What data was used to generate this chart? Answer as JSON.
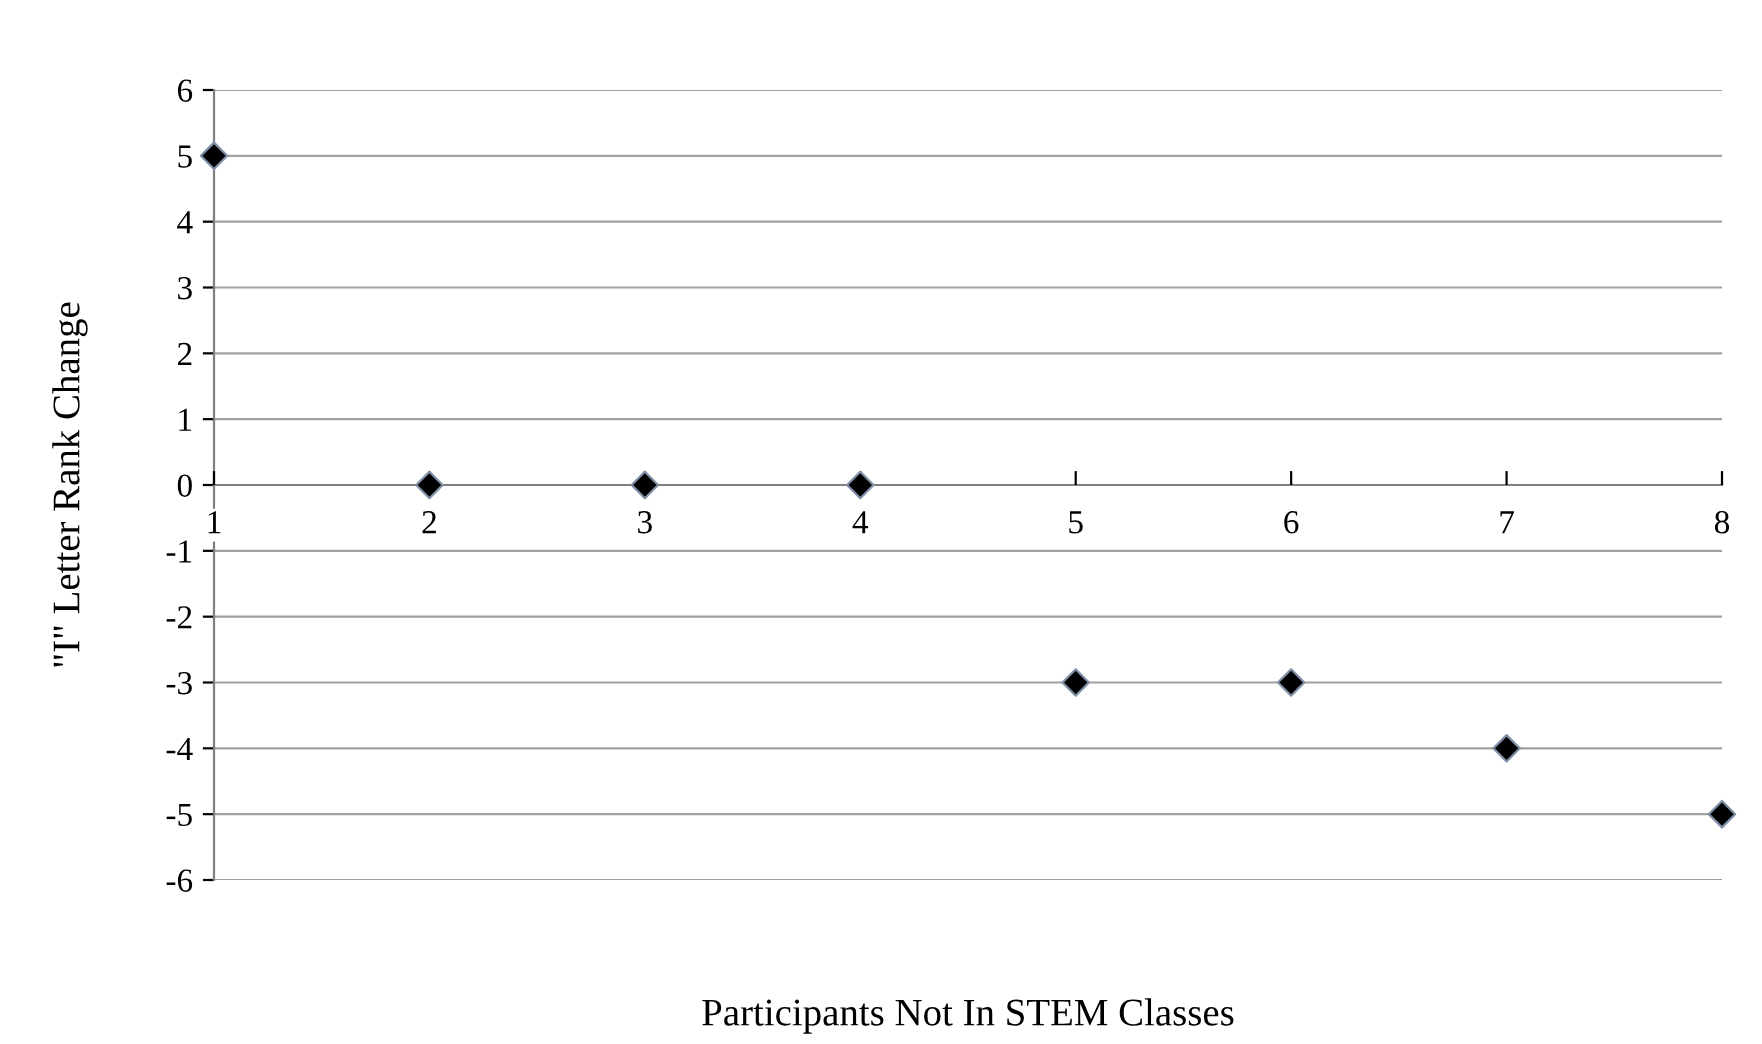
{
  "chart_data": {
    "type": "scatter",
    "xlabel": "Participants Not In STEM Classes",
    "ylabel": "\"I\" Letter Rank Change",
    "x": [
      1,
      2,
      3,
      4,
      5,
      6,
      7,
      8
    ],
    "series": [
      {
        "color": "#000000",
        "values": [
          5,
          0,
          0,
          0,
          -3,
          -3,
          -4,
          -5
        ]
      }
    ],
    "xlim": [
      1,
      8
    ],
    "xticks": [
      1,
      2,
      3,
      4,
      5,
      6,
      7,
      8
    ],
    "ylim": [
      -6,
      6
    ],
    "yticks": [
      -6,
      -5,
      -4,
      -3,
      -2,
      -1,
      0,
      1,
      2,
      3,
      4,
      5,
      6
    ],
    "grid": "y",
    "marker": "diamond"
  }
}
